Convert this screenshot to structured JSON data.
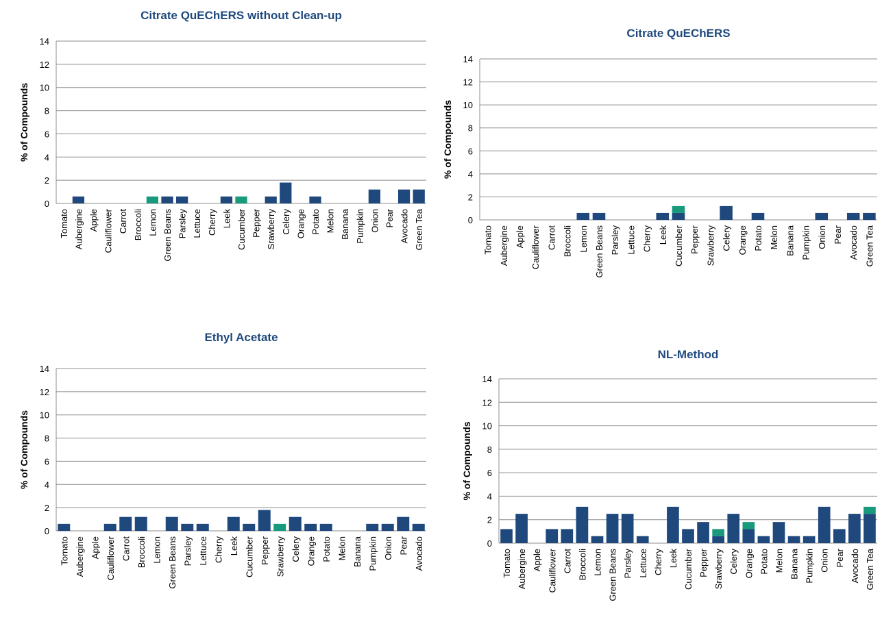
{
  "chart_data": [
    {
      "type": "stacked_bar",
      "title": "Citrate QuEChERS  without  Clean-up",
      "y_label": "% of Compounds",
      "categories": [
        "Tomato",
        "Aubergine",
        "Apple",
        "Cauliflower",
        "Carrot",
        "Broccoli",
        "Lemon",
        "Green Beans",
        "Parsley",
        "Lettuce",
        "Cherry",
        "Leek",
        "Cucumber",
        "Pepper",
        "Srawberry",
        "Celery",
        "Orange",
        "Potato",
        "Melon",
        "Banana",
        "Pumpkin",
        "Onion",
        "Pear",
        "Avocado",
        "Green Tea"
      ],
      "series": [
        {
          "color": "#1f497d",
          "values": [
            0,
            0.6,
            0,
            0,
            0,
            0,
            0,
            0.6,
            0.6,
            0,
            0,
            0.6,
            0,
            0,
            0.6,
            1.8,
            0,
            0.6,
            0,
            0,
            0,
            1.2,
            0,
            1.2,
            1.2
          ]
        },
        {
          "color": "#1a9a7c",
          "values": [
            0,
            0,
            0,
            0,
            0,
            0,
            0.6,
            0,
            0,
            0,
            0,
            0,
            0.6,
            0,
            0,
            0,
            0,
            0,
            0,
            0,
            0,
            0,
            0,
            0,
            0
          ]
        }
      ],
      "ylim": [
        0,
        14
      ],
      "yticks": [
        0,
        2,
        4,
        6,
        8,
        10,
        12,
        14
      ],
      "grid": true
    },
    {
      "type": "stacked_bar",
      "title": "Citrate QuEChERS",
      "y_label": "% of Compounds",
      "categories": [
        "Tomato",
        "Aubergine",
        "Apple",
        "Cauliflower",
        "Carrot",
        "Broccoli",
        "Lemon",
        "Green Beans",
        "Parsley",
        "Lettuce",
        "Cherry",
        "Leek",
        "Cucumber",
        "Pepper",
        "Srawberry",
        "Celery",
        "Orange",
        "Potato",
        "Melon",
        "Banana",
        "Pumpkin",
        "Onion",
        "Pear",
        "Avocado",
        "Green Tea"
      ],
      "series": [
        {
          "color": "#1f497d",
          "values": [
            0,
            0,
            0,
            0,
            0,
            0,
            0.6,
            0.6,
            0,
            0,
            0,
            0.6,
            0.6,
            0,
            0,
            1.2,
            0,
            0.6,
            0,
            0,
            0,
            0.6,
            0,
            0.6,
            0.6
          ]
        },
        {
          "color": "#1a9a7c",
          "values": [
            0,
            0,
            0,
            0,
            0,
            0,
            0,
            0,
            0,
            0,
            0,
            0,
            0.6,
            0,
            0,
            0,
            0,
            0,
            0,
            0,
            0,
            0,
            0,
            0,
            0
          ]
        }
      ],
      "ylim": [
        0,
        14
      ],
      "yticks": [
        0,
        2,
        4,
        6,
        8,
        10,
        12,
        14
      ],
      "grid": true
    },
    {
      "type": "stacked_bar",
      "title": "Ethyl Acetate",
      "y_label": "% of Compounds",
      "categories": [
        "Tomato",
        "Aubergine",
        "Apple",
        "Cauliflower",
        "Carrot",
        "Broccoli",
        "Lemon",
        "Green Beans",
        "Parsley",
        "Lettuce",
        "Cherry",
        "Leek",
        "Cucumber",
        "Pepper",
        "Srawberry",
        "Celery",
        "Orange",
        "Potato",
        "Melon",
        "Banana",
        "Pumpkin",
        "Onion",
        "Pear",
        "Avocado"
      ],
      "series": [
        {
          "color": "#1f497d",
          "values": [
            0.6,
            0,
            0,
            0.6,
            1.2,
            1.2,
            0,
            1.2,
            0.6,
            0.6,
            0,
            1.2,
            0.6,
            1.8,
            0,
            1.2,
            0.6,
            0.6,
            0,
            0,
            0.6,
            0.6,
            1.2,
            0.6
          ]
        },
        {
          "color": "#1a9a7c",
          "values": [
            0,
            0,
            0,
            0,
            0,
            0,
            0,
            0,
            0,
            0,
            0,
            0,
            0,
            0,
            0.6,
            0,
            0,
            0,
            0,
            0,
            0,
            0,
            0,
            0
          ]
        }
      ],
      "ylim": [
        0,
        14
      ],
      "yticks": [
        0,
        2,
        4,
        6,
        8,
        10,
        12,
        14
      ],
      "grid": true
    },
    {
      "type": "stacked_bar",
      "title": "NL-Method",
      "y_label": "% of Compounds",
      "categories": [
        "Tomato",
        "Aubergine",
        "Apple",
        "Cauliflower",
        "Carrot",
        "Broccoli",
        "Lemon",
        "Green Beans",
        "Parsley",
        "Lettuce",
        "Cherry",
        "Leek",
        "Cucumber",
        "Pepper",
        "Srawberry",
        "Celery",
        "Orange",
        "Potato",
        "Melon",
        "Banana",
        "Pumpkin",
        "Onion",
        "Pear",
        "Avocado",
        "Green Tea"
      ],
      "series": [
        {
          "color": "#1f497d",
          "values": [
            1.2,
            2.5,
            0,
            1.2,
            1.2,
            3.1,
            0.6,
            2.5,
            2.5,
            0.6,
            0,
            3.1,
            1.2,
            1.8,
            0.6,
            2.5,
            1.2,
            0.6,
            1.8,
            0.6,
            0.6,
            3.1,
            1.2,
            2.5,
            2.5
          ]
        },
        {
          "color": "#1a9a7c",
          "values": [
            0,
            0,
            0,
            0,
            0,
            0,
            0,
            0,
            0,
            0,
            0,
            0,
            0,
            0,
            0.6,
            0,
            0.6,
            0,
            0,
            0,
            0,
            0,
            0,
            0,
            0.6
          ]
        }
      ],
      "ylim": [
        0,
        14
      ],
      "yticks": [
        0,
        2,
        4,
        6,
        8,
        10,
        12,
        14
      ],
      "grid": true
    }
  ]
}
